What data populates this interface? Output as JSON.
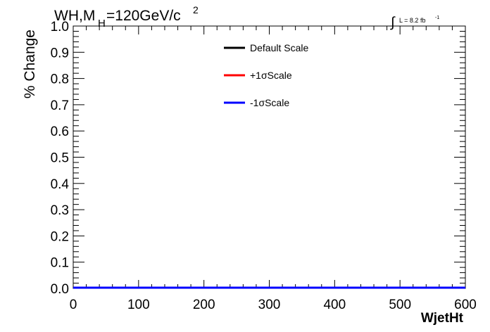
{
  "chart_data": {
    "type": "line",
    "title": "WH,M",
    "title_subscript": "H",
    "title_rest": "=120GeV/c",
    "title_superscript": "2",
    "lumi_integral": "∫",
    "lumi_text": "L = 8.2 fb",
    "lumi_exponent": "-1",
    "xlabel": "WjetHt",
    "ylabel": "% Change",
    "xlim": [
      0,
      600
    ],
    "ylim": [
      0.0,
      1.0
    ],
    "xticks": [
      0,
      100,
      200,
      300,
      400,
      500,
      600
    ],
    "yticks": [
      0.0,
      0.1,
      0.2,
      0.3,
      0.4,
      0.5,
      0.6,
      0.7,
      0.8,
      0.9,
      1.0
    ],
    "xtick_labels": [
      "0",
      "100",
      "200",
      "300",
      "400",
      "500",
      "600"
    ],
    "ytick_labels": [
      "0.0",
      "0.1",
      "0.2",
      "0.3",
      "0.4",
      "0.5",
      "0.6",
      "0.7",
      "0.8",
      "0.9",
      "1.0"
    ],
    "grid": false,
    "legend_position": "top-center",
    "series": [
      {
        "name": "Default Scale",
        "color": "#000000",
        "x": [
          0,
          600
        ],
        "y": [
          0.0,
          0.0
        ]
      },
      {
        "name": "+1σScale",
        "color": "#ff0000",
        "x": [
          0,
          600
        ],
        "y": [
          0.0,
          0.0
        ]
      },
      {
        "name": "-1σScale",
        "color": "#0000ff",
        "x": [
          0,
          600
        ],
        "y": [
          0.0,
          0.0
        ]
      }
    ]
  }
}
